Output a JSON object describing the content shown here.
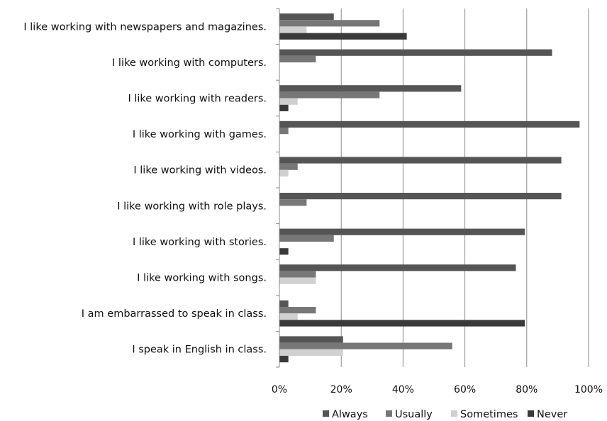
{
  "chart_data": {
    "type": "bar",
    "orientation": "horizontal",
    "categories": [
      "I like working with newspapers and magazines.",
      "I like working with computers.",
      "I like working with readers.",
      "I like working with games.",
      "I like working with videos.",
      "I like working with role plays.",
      "I like working with stories.",
      "I like working with songs.",
      "I am embarrassed to speak in class.",
      "I speak in English in class."
    ],
    "series": [
      {
        "name": "Always",
        "color": "#555555",
        "values": [
          17.6,
          88.2,
          58.8,
          97.1,
          91.2,
          91.2,
          79.4,
          76.5,
          2.9,
          20.6
        ]
      },
      {
        "name": "Usually",
        "color": "#777777",
        "values": [
          32.4,
          11.8,
          32.4,
          2.9,
          5.9,
          8.8,
          17.6,
          11.8,
          11.8,
          55.9
        ]
      },
      {
        "name": "Sometimes",
        "color": "#d0d0d0",
        "values": [
          8.8,
          0,
          5.9,
          0,
          2.9,
          0,
          0,
          11.8,
          5.9,
          20.6
        ]
      },
      {
        "name": "Never",
        "color": "#3a3a3a",
        "values": [
          41.2,
          0,
          2.9,
          0,
          0,
          0,
          2.9,
          0,
          79.4,
          2.9
        ]
      }
    ],
    "xlim": [
      0,
      100
    ],
    "xticks": [
      "0%",
      "20%",
      "40%",
      "60%",
      "80%",
      "100%"
    ],
    "grid": "vertical",
    "legend_position": "bottom-right",
    "title": "",
    "xlabel": "",
    "ylabel": ""
  }
}
